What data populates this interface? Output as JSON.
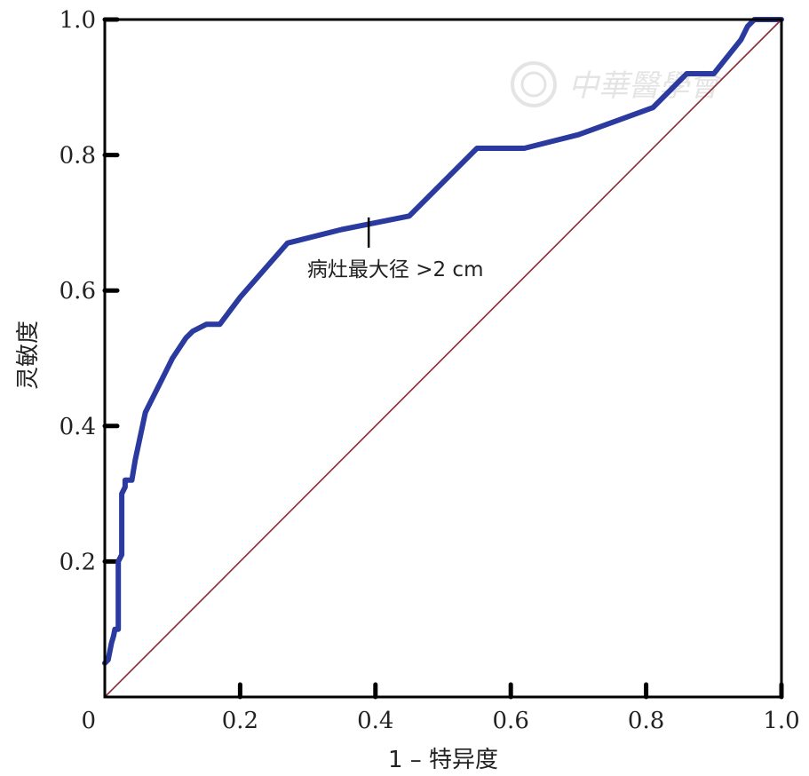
{
  "chart_data": {
    "type": "line",
    "xlabel": "1 – 特异度",
    "ylabel": "灵敏度",
    "xlim": [
      0,
      1
    ],
    "ylim": [
      0,
      1
    ],
    "x_ticks": [
      "0",
      "0.2",
      "0.4",
      "0.6",
      "0.8",
      "1.0"
    ],
    "y_ticks": [
      "0.2",
      "0.4",
      "0.6",
      "0.8",
      "1.0"
    ],
    "grid": false,
    "series": [
      {
        "name": "病灶最大径 >2 cm",
        "color": "#2b3a9e",
        "x": [
          0,
          0.005,
          0.01,
          0.013,
          0.015,
          0.02,
          0.02,
          0.025,
          0.025,
          0.03,
          0.03,
          0.04,
          0.045,
          0.06,
          0.07,
          0.08,
          0.09,
          0.1,
          0.12,
          0.13,
          0.15,
          0.17,
          0.2,
          0.27,
          0.35,
          0.45,
          0.55,
          0.62,
          0.7,
          0.81,
          0.86,
          0.9,
          0.94,
          0.95,
          0.96,
          1.0
        ],
        "y": [
          0.05,
          0.055,
          0.08,
          0.09,
          0.1,
          0.1,
          0.2,
          0.21,
          0.3,
          0.31,
          0.32,
          0.32,
          0.35,
          0.42,
          0.44,
          0.46,
          0.48,
          0.5,
          0.53,
          0.54,
          0.55,
          0.55,
          0.59,
          0.67,
          0.69,
          0.71,
          0.81,
          0.81,
          0.83,
          0.87,
          0.92,
          0.92,
          0.97,
          0.99,
          1.0,
          1.0
        ]
      },
      {
        "color": "#8b2a3a",
        "x": [
          0,
          1
        ],
        "y": [
          0,
          1
        ]
      }
    ],
    "annotations": [
      {
        "text": "病灶最大径 >2 cm",
        "x": 0.39,
        "y": 0.7
      }
    ]
  },
  "watermark": {
    "text": "中華醫學會"
  }
}
